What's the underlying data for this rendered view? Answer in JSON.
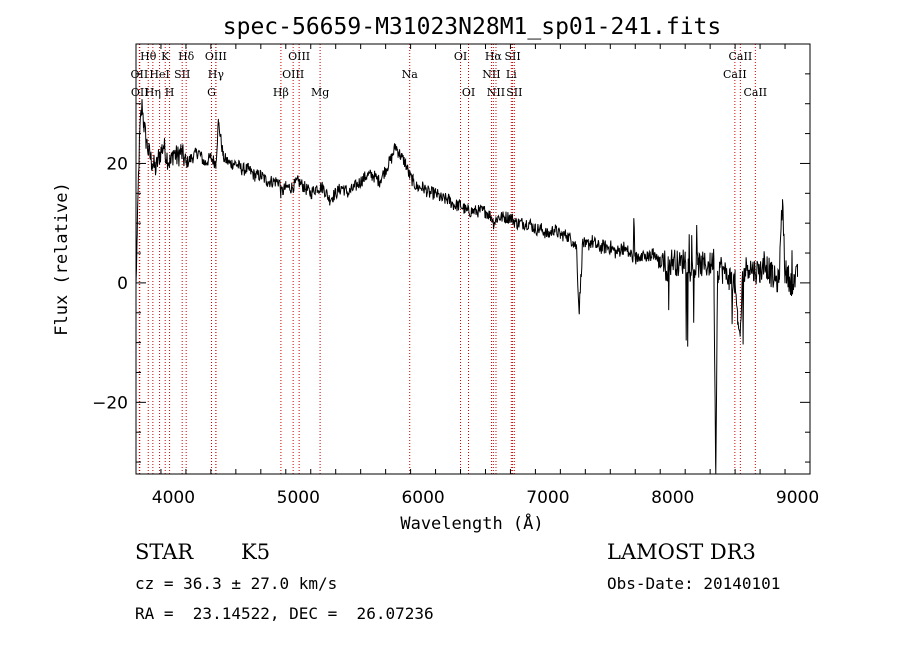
{
  "chart_data": {
    "type": "line",
    "title": "spec-56659-M31023N28M1_sp01-241.fits",
    "xlabel": "Wavelength (Å)",
    "ylabel": "Flux (relative)",
    "xlim": [
      3700,
      9100
    ],
    "ylim": [
      -32,
      40
    ],
    "xticks": [
      4000,
      5000,
      6000,
      7000,
      8000,
      9000
    ],
    "yticks": [
      -20,
      0,
      20
    ],
    "grid": false,
    "spectrum": {
      "name": "flux",
      "x": [
        3700,
        3710,
        3720,
        3730,
        3740,
        3750,
        3760,
        3780,
        3800,
        3830,
        3860,
        3880,
        3900,
        3920,
        3950,
        3980,
        4000,
        4030,
        4060,
        4100,
        4150,
        4200,
        4250,
        4300,
        4340,
        4360,
        4400,
        4450,
        4500,
        4550,
        4600,
        4650,
        4700,
        4750,
        4800,
        4850,
        4861,
        4900,
        4950,
        5000,
        5050,
        5100,
        5150,
        5200,
        5250,
        5300,
        5350,
        5400,
        5450,
        5500,
        5550,
        5600,
        5650,
        5700,
        5750,
        5780,
        5800,
        5830,
        5860,
        5890,
        5920,
        5950,
        6000,
        6050,
        6100,
        6150,
        6200,
        6250,
        6300,
        6350,
        6400,
        6450,
        6500,
        6550,
        6563,
        6600,
        6650,
        6700,
        6750,
        6800,
        6850,
        6900,
        6950,
        7000,
        7050,
        7100,
        7150,
        7200,
        7230,
        7250,
        7280,
        7300,
        7350,
        7400,
        7450,
        7500,
        7550,
        7600,
        7650,
        7700,
        7750,
        7800,
        7850,
        7900,
        7920,
        7950,
        8000,
        8050,
        8100,
        8150,
        8200,
        8250,
        8300,
        8330,
        8345,
        8360,
        8380,
        8400,
        8450,
        8500,
        8520,
        8540,
        8560,
        8580,
        8600,
        8650,
        8700,
        8750,
        8800,
        8850,
        8880,
        8900,
        8950,
        9000
      ],
      "y": [
        0,
        8,
        18,
        25,
        28,
        30,
        27,
        24,
        22,
        20,
        19,
        21,
        22,
        23,
        21,
        20,
        22,
        21,
        22,
        20,
        21,
        22,
        20,
        21,
        20,
        27,
        21,
        20,
        20,
        19,
        19,
        18,
        18,
        17,
        17,
        17,
        15,
        16,
        16,
        17,
        16,
        15,
        16,
        16,
        14,
        15,
        16,
        15,
        16,
        17,
        18,
        18,
        17,
        19,
        21,
        23,
        22,
        21,
        20,
        18,
        17,
        16,
        16,
        15,
        15,
        14,
        14,
        13,
        13,
        12,
        12,
        12,
        12,
        11,
        10,
        11,
        11,
        11,
        10,
        10,
        10,
        9,
        9,
        8,
        9,
        8,
        8,
        7,
        6,
        -5,
        7,
        6,
        7,
        6,
        6,
        6,
        5,
        6,
        5,
        4,
        5,
        4,
        5,
        3,
        5,
        2,
        4,
        3,
        4,
        2,
        3,
        3,
        3,
        4,
        -32,
        2,
        3,
        2,
        1,
        0,
        -7,
        -9,
        1,
        2,
        3,
        2,
        2,
        3,
        1,
        0,
        14,
        2,
        0,
        1
      ]
    },
    "spectral_lines": [
      {
        "label": "Hθ",
        "x": 3798,
        "row": 0
      },
      {
        "label": "K",
        "x": 3934,
        "row": 0
      },
      {
        "label": "Hδ",
        "x": 4102,
        "row": 0
      },
      {
        "label": "OIII",
        "x": 4340,
        "row": 0
      },
      {
        "label": "OIII",
        "x": 5007,
        "row": 0
      },
      {
        "label": "OI",
        "x": 6300,
        "row": 0
      },
      {
        "label": "Hα",
        "x": 6563,
        "row": 0
      },
      {
        "label": "SII",
        "x": 6717,
        "row": 0
      },
      {
        "label": "CaII",
        "x": 8542,
        "row": 0
      },
      {
        "label": "OII",
        "x": 3727,
        "row": 1
      },
      {
        "label": "HeI",
        "x": 3889,
        "row": 1
      },
      {
        "label": "SII",
        "x": 4070,
        "row": 1
      },
      {
        "label": "Hγ",
        "x": 4340,
        "row": 1
      },
      {
        "label": "OIII",
        "x": 4959,
        "row": 1
      },
      {
        "label": "Na",
        "x": 5893,
        "row": 1
      },
      {
        "label": "NII",
        "x": 6548,
        "row": 1
      },
      {
        "label": "Li",
        "x": 6707,
        "row": 1
      },
      {
        "label": "CaII",
        "x": 8498,
        "row": 1
      },
      {
        "label": "OII",
        "x": 3730,
        "row": 2
      },
      {
        "label": "Hη",
        "x": 3835,
        "row": 2
      },
      {
        "label": "H",
        "x": 3969,
        "row": 2
      },
      {
        "label": "G",
        "x": 4305,
        "row": 2
      },
      {
        "label": "Hβ",
        "x": 4861,
        "row": 2
      },
      {
        "label": "Mg",
        "x": 5175,
        "row": 2
      },
      {
        "label": "OI",
        "x": 6364,
        "row": 2
      },
      {
        "label": "NII",
        "x": 6584,
        "row": 2
      },
      {
        "label": "SII",
        "x": 6731,
        "row": 2
      },
      {
        "label": "CaII",
        "x": 8662,
        "row": 2
      }
    ]
  },
  "info": {
    "object_class": "STAR",
    "subclass": "K5",
    "survey": "LAMOST DR3",
    "redshift": "cz = 36.3 ± 27.0 km/s",
    "obs_date": "Obs-Date: 20140101",
    "coords": "RA =  23.14522, DEC =  26.07236"
  },
  "colors": {
    "spectrum": "#000000",
    "line_marker": "#cc0000",
    "axes": "#000000"
  }
}
